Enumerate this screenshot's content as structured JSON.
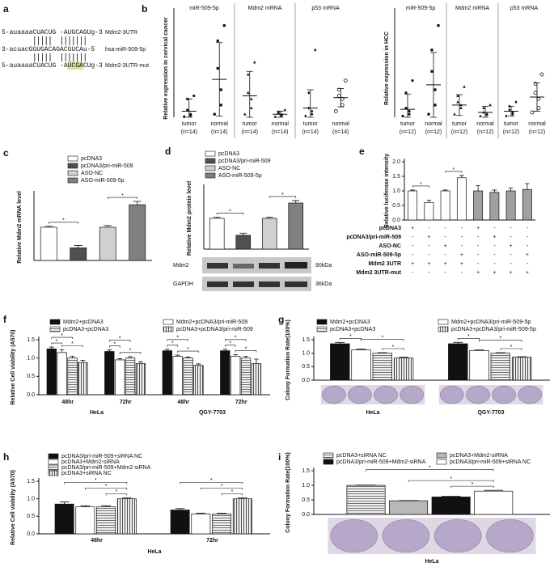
{
  "panel_a": {
    "panel": "a",
    "rows": [
      {
        "sequence": "5-auaaaaCUACUG -AUGCAGUg-3",
        "name": "Mdm2-3UTR"
      },
      {
        "sequence": "3-acuacGGUGACAGACGUCAu-5",
        "name": "hsa-miR-509-5p"
      },
      {
        "sequence": "5-auaaaaCUACUG -AUCGACUg-3",
        "name": "Mdm2-3UTR-mut"
      }
    ]
  },
  "chart_data": [
    {
      "type": "dotplot",
      "panel": "b",
      "ylabel": "Relative expression in cervical cancer",
      "groups": [
        "miR-509-5p",
        "Mdm2 mRNA",
        "p53 mRNA"
      ],
      "categories": [
        "tumor",
        "normal",
        "tumor",
        "normal",
        "tumor",
        "normal"
      ],
      "n_labels": [
        "(n=14)",
        "(n=14)",
        "(n=14)",
        "(n=14)",
        "(n=14)",
        "(n=14)"
      ],
      "ylim": [
        0,
        16
      ],
      "points": [
        [
          0.1,
          0.3,
          0.5,
          1.2,
          3.0,
          3.5
        ],
        [
          0.5,
          2.0,
          4.5,
          8.0,
          12.5,
          15.0
        ],
        [
          0.5,
          1.5,
          3.0,
          4.0,
          7.0,
          9.0
        ],
        [
          0.1,
          0.3,
          0.5,
          0.7,
          0.9,
          1.2
        ],
        [
          0.2,
          0.5,
          1.0,
          1.5,
          4.0,
          11.0
        ],
        [
          1.0,
          2.0,
          3.0,
          3.5,
          4.5,
          6.0
        ]
      ],
      "means": [
        1.0,
        6.2,
        3.5,
        0.5,
        1.5,
        3.2
      ],
      "sds": [
        2.0,
        6.0,
        4.0,
        0.5,
        3.0,
        1.5
      ]
    },
    {
      "type": "dotplot",
      "ylabel": "Relative expression in HCC",
      "groups": [
        "miR-509-5p",
        "Mdm2 mRNA",
        "p53 mRNA"
      ],
      "categories": [
        "tumor",
        "normal",
        "tumor",
        "normal",
        "tumor",
        "normal"
      ],
      "n_labels": [
        "(n=12)",
        "(n=12)",
        "(n=12)",
        "(n=12)",
        "(n=12)",
        "(n=12)"
      ],
      "ylim": [
        0,
        16
      ],
      "points": [
        [
          0.2,
          0.5,
          1.0,
          1.5,
          4.0,
          6.0
        ],
        [
          0.5,
          2.0,
          4.5,
          7.5,
          11.0,
          15.0
        ],
        [
          0.5,
          1.5,
          2.0,
          2.5,
          3.5,
          5.0
        ],
        [
          0.2,
          0.4,
          0.6,
          0.8,
          1.5,
          2.0
        ],
        [
          0.2,
          0.5,
          0.8,
          1.2,
          1.8,
          2.5
        ],
        [
          0.8,
          1.5,
          3.0,
          4.0,
          5.5,
          7.0
        ]
      ],
      "means": [
        1.3,
        5.3,
        2.0,
        0.8,
        1.0,
        3.3
      ],
      "sds": [
        2.5,
        5.3,
        1.7,
        1.0,
        0.8,
        2.3
      ]
    },
    {
      "type": "bar",
      "panel": "c",
      "ylabel": "Relative Mdm2 mRNA level",
      "categories": [
        "pcDNA3",
        "pcDNA3/pri-miR-509",
        "ASO-NC",
        "ASO-miR-509-5p"
      ],
      "values": [
        1.0,
        0.38,
        1.0,
        1.68
      ],
      "errors": [
        0.03,
        0.07,
        0.05,
        0.1
      ],
      "colors": [
        "#ffffff",
        "#505050",
        "#d0d0d0",
        "#808080"
      ],
      "ylim": [
        0,
        2
      ],
      "significance": "*"
    },
    {
      "type": "bar",
      "panel": "d",
      "ylabel": "Relative Mdm2 protein level",
      "categories": [
        "pcDNA3",
        "pcDNA3/pri-miR-509",
        "ASO-NC",
        "ASO-miR-509-5p"
      ],
      "values": [
        1.0,
        0.45,
        1.0,
        1.5
      ],
      "errors": [
        0.04,
        0.07,
        0.04,
        0.08
      ],
      "colors": [
        "#ffffff",
        "#505050",
        "#d0d0d0",
        "#808080"
      ],
      "ylim": [
        0,
        2
      ],
      "significance": "*",
      "blot": {
        "proteins": [
          "Mdm2",
          "GAPDH"
        ],
        "sizes": [
          "90kDa",
          "36kDa"
        ]
      }
    },
    {
      "type": "bar",
      "panel": "e",
      "ylabel": "Relative luciferase intensity",
      "values": [
        1.0,
        0.6,
        1.0,
        1.45,
        1.0,
        0.95,
        1.0,
        1.05
      ],
      "errors": [
        0.03,
        0.08,
        0.03,
        0.08,
        0.18,
        0.08,
        0.1,
        0.2
      ],
      "colors": [
        "#ffffff",
        "#ffffff",
        "#ffffff",
        "#ffffff",
        "#a0a0a0",
        "#a0a0a0",
        "#a0a0a0",
        "#a0a0a0"
      ],
      "ylim": [
        0,
        2
      ],
      "yticks": [
        {
          "value": 0,
          "label": "0.0"
        },
        0.5,
        {
          "value": 1,
          "label": "1.0"
        },
        1.5,
        {
          "value": 2,
          "label": "2.0"
        }
      ],
      "significance": "*",
      "table": [
        {
          "name": "pcDNA3",
          "marks": [
            "+",
            "-",
            "-",
            "-",
            "+",
            "-",
            "-",
            "-"
          ]
        },
        {
          "name": "pcDNA3/pri-miR-509",
          "marks": [
            "-",
            "+",
            "-",
            "-",
            "-",
            "+",
            "-",
            "-"
          ]
        },
        {
          "name": "ASO-NC",
          "marks": [
            "-",
            "-",
            "+",
            "-",
            "-",
            "-",
            "+",
            "-"
          ]
        },
        {
          "name": "ASO-miR-509-5p",
          "marks": [
            "-",
            "-",
            "-",
            "+",
            "-",
            "-",
            "-",
            "+"
          ]
        },
        {
          "name": "Mdm2 3UTR",
          "marks": [
            "+",
            "+",
            "+",
            "+",
            "-",
            "-",
            "-",
            "-"
          ]
        },
        {
          "name": "Mdm2 3UTR-mut",
          "marks": [
            "-",
            "-",
            "-",
            "-",
            "+",
            "+",
            "+",
            "+"
          ]
        }
      ]
    },
    {
      "type": "bar",
      "panel": "f",
      "ylabel": "Relative Cell viability (A570)",
      "categories": [
        "48hr",
        "72hr",
        "48hr",
        "72hr"
      ],
      "cell_lines": [
        "HeLa",
        "QGY-7703"
      ],
      "ylim": [
        0,
        1.5
      ],
      "yticks": [
        {
          "value": 0,
          "label": "0.0"
        },
        0.5,
        {
          "value": 1,
          "label": "1.0"
        },
        1.5
      ],
      "significance": "*",
      "series": [
        {
          "name": "Mdm2+pcDNA3",
          "color": "#111111",
          "values": [
            1.25,
            1.18,
            1.2,
            1.2
          ],
          "errors": [
            0.05,
            0.04,
            0.04,
            0.04
          ]
        },
        {
          "name": "Mdm2+pcDNA3/pri-miR-509",
          "color": "#ffffff",
          "values": [
            1.15,
            0.95,
            1.05,
            1.05
          ],
          "errors": [
            0.08,
            0.03,
            0.03,
            0.04
          ]
        },
        {
          "name": "pcDNA3+pcDNA3",
          "color": "#707070",
          "hatch": "horizontal",
          "values": [
            1.0,
            1.0,
            1.0,
            1.0
          ],
          "errors": [
            0.05,
            0.04,
            0.03,
            0.05
          ]
        },
        {
          "name": "pcDNA3+pcDNA3/pri-miR-509",
          "color": "#505050",
          "hatch": "vertical",
          "values": [
            0.88,
            0.85,
            0.8,
            0.85
          ],
          "errors": [
            0.06,
            0.05,
            0.04,
            0.12
          ]
        }
      ]
    },
    {
      "type": "bar",
      "panel": "g",
      "ylabel": "Colony Formation Rate(100%)",
      "categories": [
        "HeLa",
        "QGY-7703"
      ],
      "ylim": [
        0,
        1.5
      ],
      "yticks": [
        {
          "value": 0,
          "label": "0.0"
        },
        0.5,
        {
          "value": 1,
          "label": "1.0"
        },
        1.5
      ],
      "significance": "*",
      "series": [
        {
          "name": "Mdm2+pcDNA3",
          "color": "#111111",
          "values": [
            1.35,
            1.35
          ],
          "errors": [
            0.05,
            0.05
          ]
        },
        {
          "name": "Mdm2+pcDNA3/pri-miR-509-5p",
          "color": "#ffffff",
          "values": [
            1.12,
            1.1
          ],
          "errors": [
            0.03,
            0.02
          ]
        },
        {
          "name": "pcDNA3+pcDNA3",
          "color": "#707070",
          "hatch": "horizontal",
          "values": [
            1.0,
            1.0
          ],
          "errors": [
            0.02,
            0.02
          ]
        },
        {
          "name": "pcDNA3+pcDNA3/pri-miR-509-5p",
          "color": "#505050",
          "hatch": "vertical",
          "values": [
            0.82,
            0.85
          ],
          "errors": [
            0.03,
            0.02
          ]
        }
      ]
    },
    {
      "type": "bar",
      "panel": "h",
      "ylabel": "Relative Cell viability (A570)",
      "categories": [
        "48hr",
        "72hr"
      ],
      "cell_lines": [
        "HeLa"
      ],
      "ylim": [
        0,
        1.5
      ],
      "yticks": [
        {
          "value": 0,
          "label": "0.0"
        },
        0.5,
        {
          "value": 1,
          "label": "1.0"
        },
        1.5
      ],
      "significance": "*",
      "series": [
        {
          "name": "pcDNA3/pri-miR-509+siRNA NC",
          "color": "#111111",
          "values": [
            0.85,
            0.68
          ],
          "errors": [
            0.06,
            0.04
          ]
        },
        {
          "name": "pcDNA3+Mdm2-siRNA",
          "color": "#ffffff",
          "values": [
            0.77,
            0.57
          ],
          "errors": [
            0.03,
            0.02
          ]
        },
        {
          "name": "pcDNA3/pri-miR-509+Mdm2-siRNA",
          "color": "#707070",
          "hatch": "horizontal",
          "values": [
            0.77,
            0.57
          ],
          "errors": [
            0.03,
            0.02
          ]
        },
        {
          "name": "pcDNA3+siRNA NC",
          "color": "#505050",
          "hatch": "vertical",
          "values": [
            1.0,
            1.0
          ],
          "errors": [
            0.03,
            0.03
          ]
        }
      ]
    },
    {
      "type": "bar",
      "panel": "i",
      "ylabel": "Colony Formation Rate(100%)",
      "categories": [
        "HeLa"
      ],
      "ylim": [
        0,
        1.5
      ],
      "yticks": [
        {
          "value": 0,
          "label": "0.0"
        },
        0.5,
        {
          "value": 1,
          "label": "1.0"
        },
        1.5
      ],
      "significance": "*",
      "series": [
        {
          "name": "pcDNA3+siRNA NC",
          "color": "#707070",
          "hatch": "horizontal",
          "values": [
            1.0
          ],
          "errors": [
            0.01
          ]
        },
        {
          "name": "pcDNA3+Mdm2-siRNA",
          "color": "#b8b8b8",
          "values": [
            0.47
          ],
          "errors": [
            0.01
          ]
        },
        {
          "name": "pcDNA3/pri-miR-509+Mdm2-siRNA",
          "color": "#111111",
          "values": [
            0.6
          ],
          "errors": [
            0.02
          ]
        },
        {
          "name": "pcDNA3/pri-miR-509+siRNA NC",
          "color": "#ffffff",
          "values": [
            0.8
          ],
          "errors": [
            0.03
          ]
        }
      ]
    }
  ]
}
